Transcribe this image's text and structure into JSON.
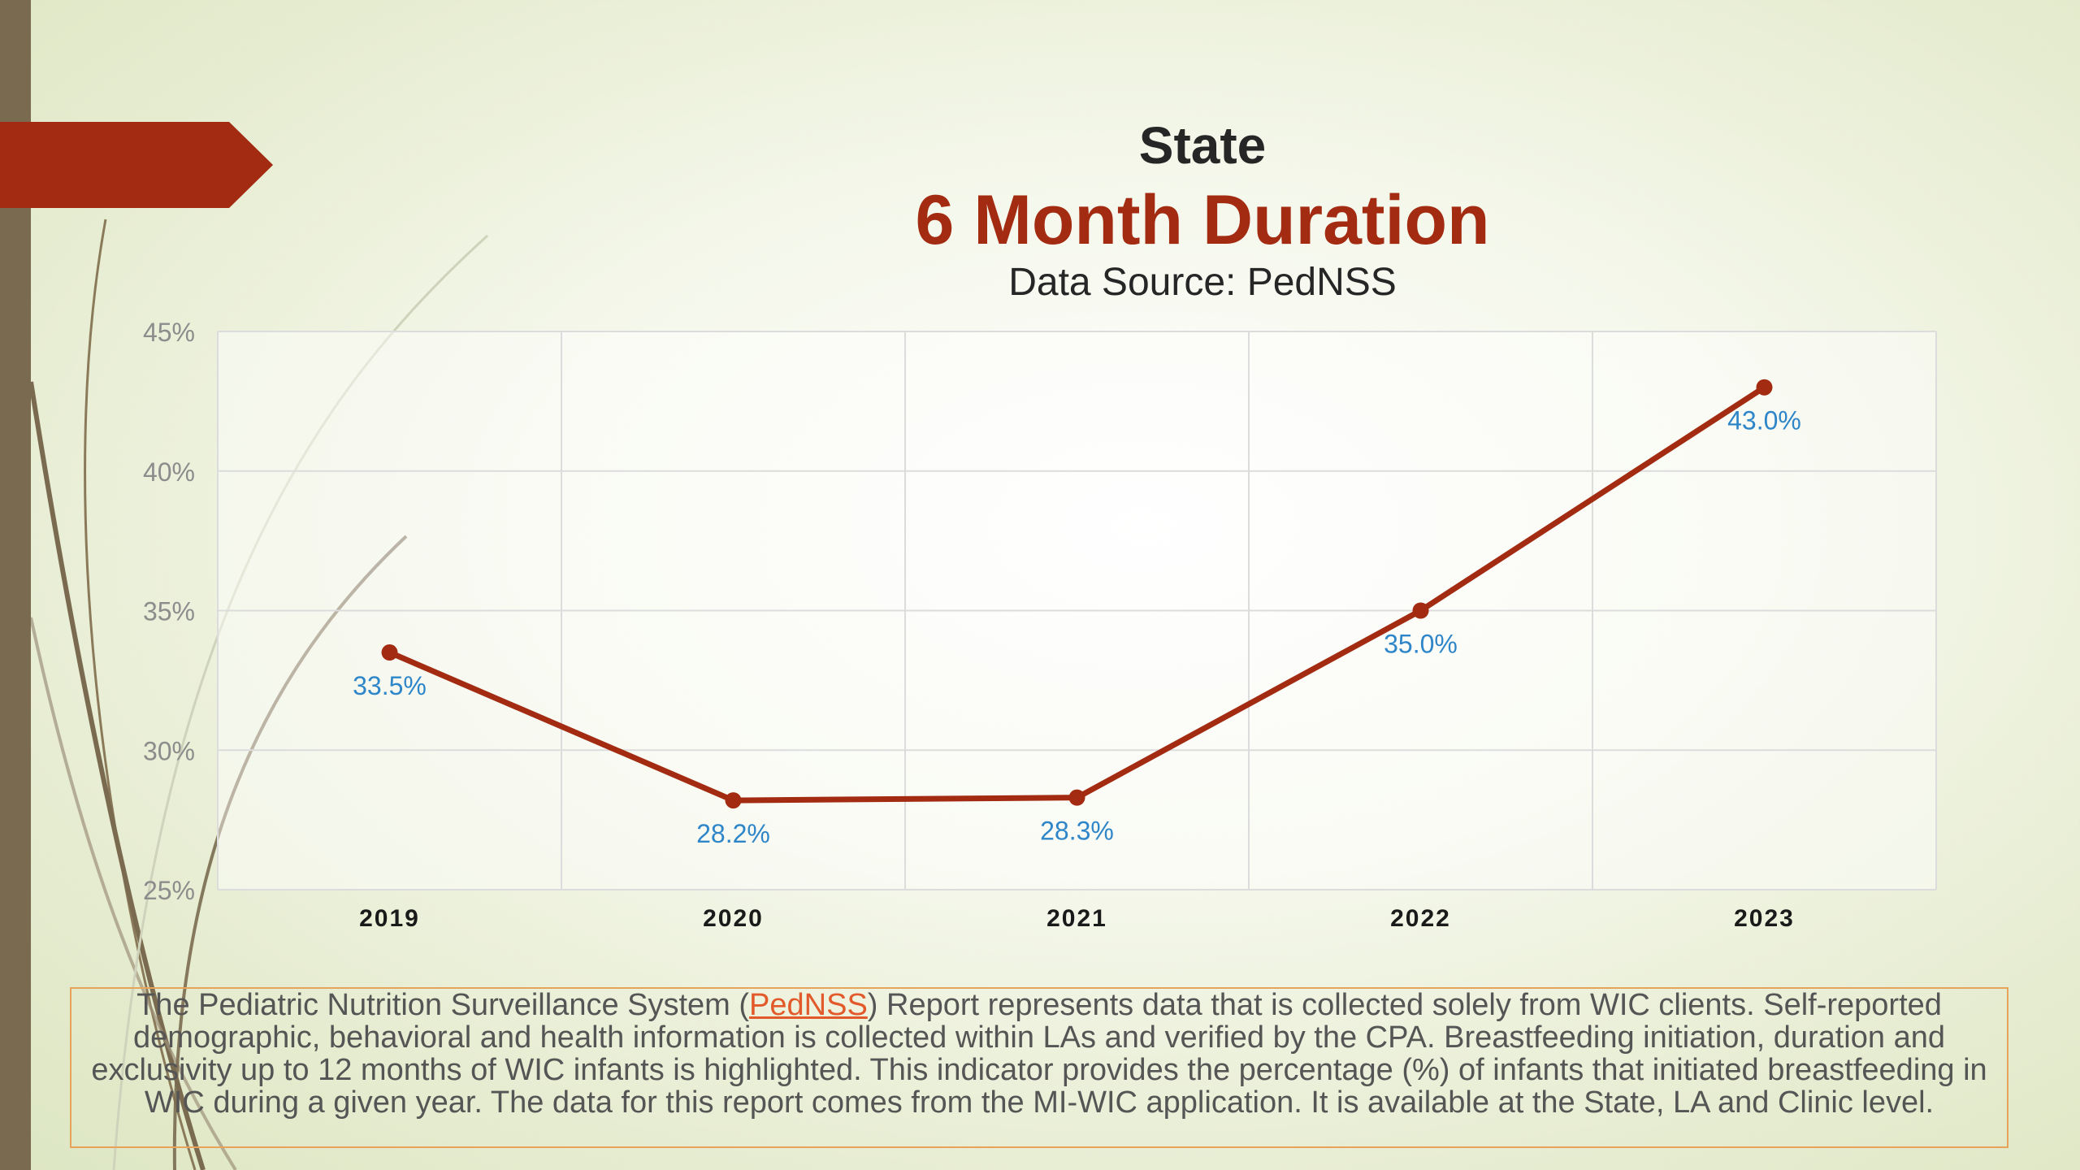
{
  "slide": {
    "title": "State",
    "subtitle": "6 Month Duration",
    "source": "Data Source: PedNSS"
  },
  "colors": {
    "accent": "#a22b11",
    "label": "#2e86c9",
    "sidebar": "#7a6b50"
  },
  "chart_data": {
    "type": "line",
    "categories": [
      "2019",
      "2020",
      "2021",
      "2022",
      "2023"
    ],
    "values": [
      33.5,
      28.2,
      28.3,
      35.0,
      43.0
    ],
    "data_labels": [
      "33.5%",
      "28.2%",
      "28.3%",
      "35.0%",
      "43.0%"
    ],
    "yticks": [
      25,
      30,
      35,
      40,
      45
    ],
    "ytick_labels": [
      "25%",
      "30%",
      "35%",
      "40%",
      "45%"
    ],
    "ylim": [
      25,
      45
    ],
    "grid": true
  },
  "caption": {
    "pre": "The Pediatric Nutrition Surveillance System (",
    "link": "PedNSS",
    "post": ") Report represents data that is collected solely from WIC clients. Self-reported demographic, behavioral and health information is collected within LAs and verified by the CPA. Breastfeeding initiation, duration and exclusivity up to 12 months of WIC infants is highlighted. This indicator provides the percentage (%) of infants that initiated breastfeeding in WIC during a given year. The data for this report comes from the MI-WIC application. It is available at the State, LA and Clinic level."
  }
}
